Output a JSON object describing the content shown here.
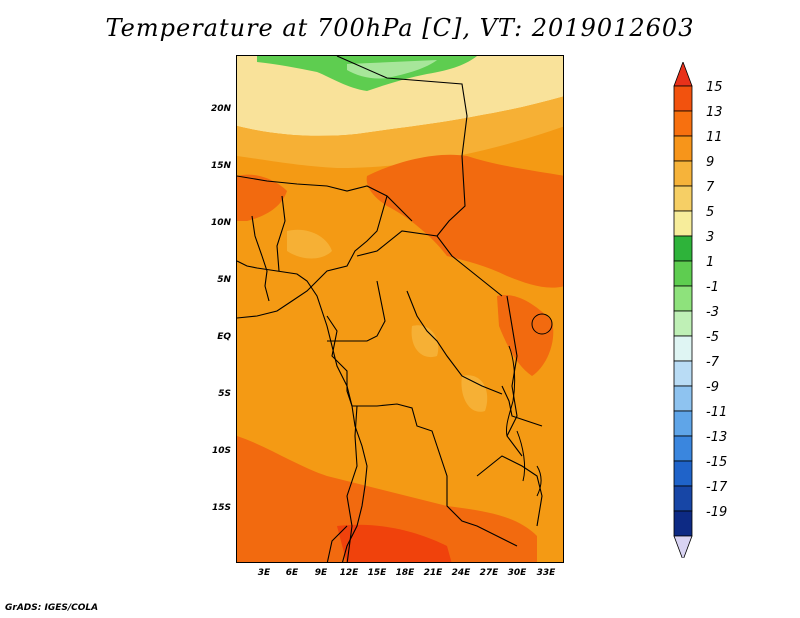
{
  "title": "Temperature at 700hPa [C], VT: 2019012603",
  "credit": "GrADS: IGES/COLA",
  "lat_labels": [
    "20N",
    "15N",
    "10N",
    "5N",
    "EQ",
    "5S",
    "10S",
    "15S"
  ],
  "lon_labels": [
    "3E",
    "6E",
    "9E",
    "12E",
    "15E",
    "18E",
    "21E",
    "24E",
    "27E",
    "30E",
    "33E"
  ],
  "colorbar": {
    "labels": [
      "15",
      "13",
      "11",
      "9",
      "7",
      "5",
      "3",
      "1",
      "-1",
      "-3",
      "-5",
      "-7",
      "-9",
      "-11",
      "-13",
      "-15",
      "-17",
      "-19"
    ],
    "colors": [
      "#e8311a",
      "#f2520e",
      "#f7700f",
      "#f7951a",
      "#f6b33a",
      "#f6cf65",
      "#f7ed9b",
      "#2eb33a",
      "#5ecd50",
      "#8ee27c",
      "#bff0b6",
      "#dff5f3",
      "#b9dcf5",
      "#8ec3f0",
      "#5fa5e8",
      "#3a86de",
      "#1f63c9",
      "#1746a6",
      "#0d2a84",
      "#0a0a60"
    ]
  },
  "fields": {
    "base_color": "#f49a14",
    "warm_color": "#f26a0f",
    "hot_color": "#f0420c",
    "light_color": "#f6b035",
    "pale_color": "#f9e29a",
    "green_color": "#5ecd50",
    "lightgreen_color": "#a7e69a"
  }
}
